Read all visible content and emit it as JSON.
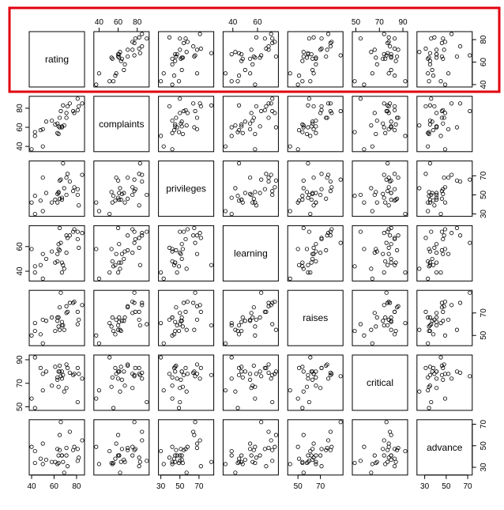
{
  "chart_data": {
    "type": "scatter-matrix",
    "variables": [
      "rating",
      "complaints",
      "privileges",
      "learning",
      "raises",
      "critical",
      "advance"
    ],
    "ranges": {
      "rating": [
        40,
        85
      ],
      "complaints": [
        37,
        90
      ],
      "privileges": [
        30,
        83
      ],
      "learning": [
        34,
        75
      ],
      "raises": [
        43,
        88
      ],
      "critical": [
        49,
        92
      ],
      "advance": [
        25,
        72
      ]
    },
    "ticks": {
      "rating": [
        40,
        60,
        80
      ],
      "complaints": [
        40,
        60,
        80
      ],
      "privileges": [
        30,
        50,
        70
      ],
      "learning": [
        40,
        60
      ],
      "raises": [
        50,
        70
      ],
      "critical": [
        50,
        70,
        90
      ],
      "advance": [
        30,
        50,
        70
      ]
    },
    "highlight": {
      "row": 0,
      "color": "#e0000f"
    },
    "observations": [
      {
        "rating": 43,
        "complaints": 51,
        "privileges": 30,
        "learning": 39,
        "raises": 61,
        "critical": 92,
        "advance": 45
      },
      {
        "rating": 63,
        "complaints": 64,
        "privileges": 51,
        "learning": 54,
        "raises": 63,
        "critical": 73,
        "advance": 47
      },
      {
        "rating": 71,
        "complaints": 70,
        "privileges": 68,
        "learning": 69,
        "raises": 76,
        "critical": 86,
        "advance": 48
      },
      {
        "rating": 61,
        "complaints": 63,
        "privileges": 45,
        "learning": 47,
        "raises": 54,
        "critical": 84,
        "advance": 35
      },
      {
        "rating": 81,
        "complaints": 78,
        "privileges": 56,
        "learning": 66,
        "raises": 71,
        "critical": 83,
        "advance": 47
      },
      {
        "rating": 43,
        "complaints": 55,
        "privileges": 49,
        "learning": 44,
        "raises": 54,
        "critical": 49,
        "advance": 34
      },
      {
        "rating": 58,
        "complaints": 67,
        "privileges": 42,
        "learning": 56,
        "raises": 66,
        "critical": 68,
        "advance": 35
      },
      {
        "rating": 71,
        "complaints": 75,
        "privileges": 50,
        "learning": 55,
        "raises": 70,
        "critical": 66,
        "advance": 41
      },
      {
        "rating": 72,
        "complaints": 82,
        "privileges": 72,
        "learning": 67,
        "raises": 71,
        "critical": 83,
        "advance": 31
      },
      {
        "rating": 67,
        "complaints": 61,
        "privileges": 45,
        "learning": 47,
        "raises": 62,
        "critical": 80,
        "advance": 41
      },
      {
        "rating": 64,
        "complaints": 53,
        "privileges": 53,
        "learning": 58,
        "raises": 58,
        "critical": 67,
        "advance": 34
      },
      {
        "rating": 67,
        "complaints": 60,
        "privileges": 47,
        "learning": 39,
        "raises": 59,
        "critical": 74,
        "advance": 41
      },
      {
        "rating": 69,
        "complaints": 62,
        "privileges": 57,
        "learning": 42,
        "raises": 55,
        "critical": 63,
        "advance": 25
      },
      {
        "rating": 68,
        "complaints": 83,
        "privileges": 83,
        "learning": 45,
        "raises": 59,
        "critical": 77,
        "advance": 35
      },
      {
        "rating": 77,
        "complaints": 77,
        "privileges": 54,
        "learning": 72,
        "raises": 79,
        "critical": 77,
        "advance": 46
      },
      {
        "rating": 81,
        "complaints": 90,
        "privileges": 50,
        "learning": 72,
        "raises": 60,
        "critical": 54,
        "advance": 36
      },
      {
        "rating": 74,
        "complaints": 85,
        "privileges": 64,
        "learning": 69,
        "raises": 79,
        "critical": 79,
        "advance": 63
      },
      {
        "rating": 65,
        "complaints": 60,
        "privileges": 65,
        "learning": 75,
        "raises": 55,
        "critical": 80,
        "advance": 60
      },
      {
        "rating": 65,
        "complaints": 70,
        "privileges": 46,
        "learning": 57,
        "raises": 75,
        "critical": 85,
        "advance": 46
      },
      {
        "rating": 50,
        "complaints": 58,
        "privileges": 68,
        "learning": 54,
        "raises": 64,
        "critical": 78,
        "advance": 52
      },
      {
        "rating": 50,
        "complaints": 40,
        "privileges": 33,
        "learning": 34,
        "raises": 43,
        "critical": 64,
        "advance": 33
      },
      {
        "rating": 64,
        "complaints": 61,
        "privileges": 52,
        "learning": 62,
        "raises": 66,
        "critical": 80,
        "advance": 41
      },
      {
        "rating": 53,
        "complaints": 66,
        "privileges": 52,
        "learning": 50,
        "raises": 63,
        "critical": 80,
        "advance": 37
      },
      {
        "rating": 40,
        "complaints": 37,
        "privileges": 42,
        "learning": 58,
        "raises": 50,
        "critical": 57,
        "advance": 49
      },
      {
        "rating": 63,
        "complaints": 54,
        "privileges": 42,
        "learning": 48,
        "raises": 66,
        "critical": 75,
        "advance": 33
      },
      {
        "rating": 66,
        "complaints": 77,
        "privileges": 66,
        "learning": 63,
        "raises": 88,
        "critical": 76,
        "advance": 72
      },
      {
        "rating": 78,
        "complaints": 75,
        "privileges": 58,
        "learning": 74,
        "raises": 80,
        "critical": 78,
        "advance": 49
      },
      {
        "rating": 48,
        "complaints": 57,
        "privileges": 44,
        "learning": 45,
        "raises": 51,
        "critical": 83,
        "advance": 38
      },
      {
        "rating": 85,
        "complaints": 85,
        "privileges": 71,
        "learning": 71,
        "raises": 77,
        "critical": 74,
        "advance": 55
      },
      {
        "rating": 82,
        "complaints": 82,
        "privileges": 39,
        "learning": 59,
        "raises": 64,
        "critical": 78,
        "advance": 39
      }
    ]
  }
}
